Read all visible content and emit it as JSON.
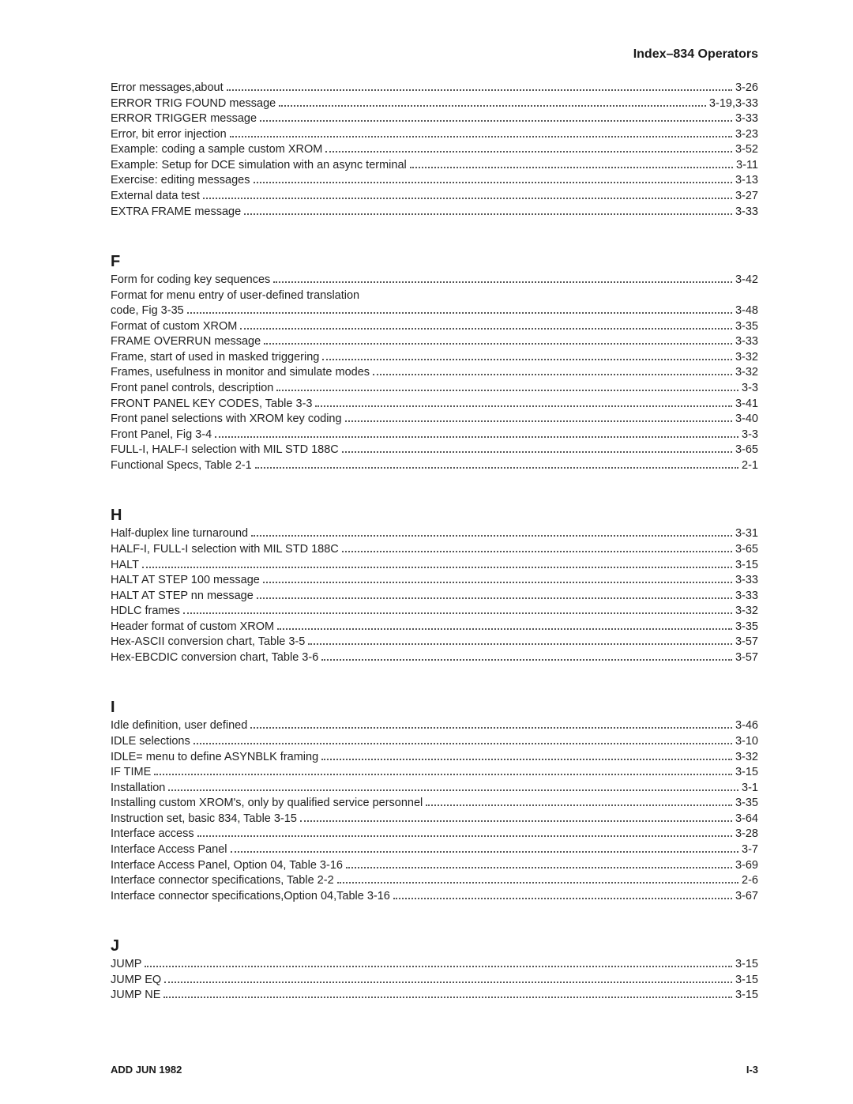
{
  "header": "Index–834 Operators",
  "footer_left": "ADD JUN 1982",
  "footer_right": "I-3",
  "sections": [
    {
      "letter": "",
      "entries": [
        {
          "text": "Error messages,about",
          "page": "3-26"
        },
        {
          "text": "ERROR TRIG FOUND message",
          "page": "3-19,3-33"
        },
        {
          "text": "ERROR TRIGGER message",
          "page": "3-33"
        },
        {
          "text": "Error, bit error injection",
          "page": "3-23"
        },
        {
          "text": "Example: coding a sample custom XROM",
          "page": "3-52"
        },
        {
          "text": "Example: Setup for DCE simulation with an async terminal",
          "page": "3-11"
        },
        {
          "text": "Exercise: editing messages",
          "page": "3-13"
        },
        {
          "text": "External data test",
          "page": "3-27"
        },
        {
          "text": "EXTRA FRAME message",
          "page": "3-33"
        }
      ]
    },
    {
      "letter": "F",
      "entries": [
        {
          "text": "Form for coding key sequences",
          "page": "3-42"
        },
        {
          "text": "Format for menu entry of user-defined translation",
          "page": null
        },
        {
          "text": "code, Fig 3-35",
          "page": "3-48"
        },
        {
          "text": "Format of custom XROM",
          "page": "3-35"
        },
        {
          "text": "FRAME OVERRUN message",
          "page": "3-33"
        },
        {
          "text": "Frame, start of used in masked triggering",
          "page": "3-32"
        },
        {
          "text": "Frames, usefulness in monitor and simulate modes",
          "page": "3-32"
        },
        {
          "text": "Front panel controls, description",
          "page": "3-3"
        },
        {
          "text": "FRONT PANEL KEY CODES, Table 3-3",
          "page": "3-41"
        },
        {
          "text": "Front panel selections with XROM key coding",
          "page": "3-40"
        },
        {
          "text": "Front Panel, Fig 3-4",
          "page": "3-3"
        },
        {
          "text": "FULL-I, HALF-I selection with MIL STD 188C",
          "page": "3-65"
        },
        {
          "text": "Functional Specs, Table 2-1",
          "page": "2-1"
        }
      ]
    },
    {
      "letter": "H",
      "entries": [
        {
          "text": "Half-duplex line turnaround",
          "page": "3-31"
        },
        {
          "text": "HALF-I, FULL-I selection with MIL STD 188C",
          "page": "3-65"
        },
        {
          "text": "HALT",
          "page": "3-15"
        },
        {
          "text": "HALT AT STEP 100 message",
          "page": "3-33"
        },
        {
          "text": "HALT AT STEP nn message",
          "page": "3-33"
        },
        {
          "text": "HDLC frames",
          "page": "3-32"
        },
        {
          "text": "Header format of custom XROM",
          "page": "3-35"
        },
        {
          "text": "Hex-ASCII conversion chart, Table 3-5",
          "page": "3-57"
        },
        {
          "text": "Hex-EBCDIC conversion chart, Table 3-6",
          "page": "3-57"
        }
      ]
    },
    {
      "letter": "I",
      "entries": [
        {
          "text": "Idle definition, user defined",
          "page": "3-46"
        },
        {
          "text": "IDLE selections",
          "page": "3-10"
        },
        {
          "text": "IDLE= menu to define ASYNBLK framing",
          "page": "3-32"
        },
        {
          "text": "IF TIME",
          "page": "3-15"
        },
        {
          "text": "Installation",
          "page": "3-1"
        },
        {
          "text": "Installing custom XROM's, only by qualified service personnel",
          "page": "3-35"
        },
        {
          "text": "Instruction set, basic 834, Table 3-15",
          "page": "3-64"
        },
        {
          "text": "Interface access",
          "page": "3-28"
        },
        {
          "text": "Interface Access Panel",
          "page": "3-7"
        },
        {
          "text": "Interface Access Panel, Option 04, Table 3-16",
          "page": "3-69"
        },
        {
          "text": "Interface connector specifications, Table 2-2",
          "page": "2-6"
        },
        {
          "text": "Interface connector specifications,Option 04,Table 3-16",
          "page": "3-67"
        }
      ]
    },
    {
      "letter": "J",
      "entries": [
        {
          "text": "JUMP",
          "page": "3-15"
        },
        {
          "text": "JUMP EQ",
          "page": "3-15"
        },
        {
          "text": "JUMP NE",
          "page": "3-15"
        }
      ]
    }
  ]
}
